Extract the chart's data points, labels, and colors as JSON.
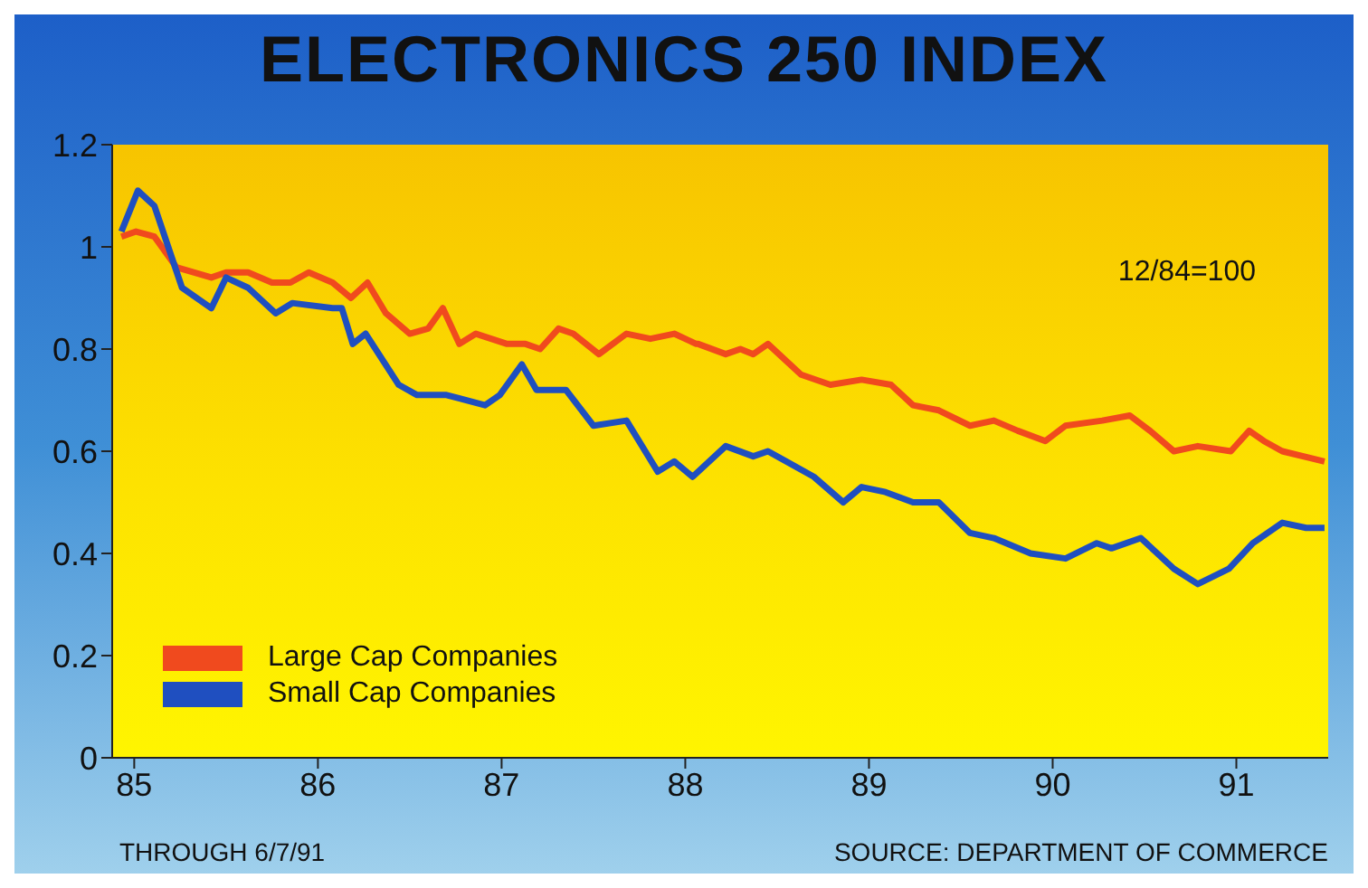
{
  "chart_data": {
    "type": "line",
    "title": "ELECTRONICS 250 INDEX",
    "annotations": [
      "12/84=100",
      "THROUGH 6/7/91",
      "SOURCE: DEPARTMENT OF COMMERCE"
    ],
    "xlim": [
      1984.88,
      1991.5
    ],
    "xticks": [
      {
        "value": 1985,
        "label": "85"
      },
      {
        "value": 1986,
        "label": "86"
      },
      {
        "value": 1987,
        "label": "87"
      },
      {
        "value": 1988,
        "label": "88"
      },
      {
        "value": 1989,
        "label": "89"
      },
      {
        "value": 1990,
        "label": "90"
      },
      {
        "value": 1991,
        "label": "91"
      }
    ],
    "ylim": [
      0,
      1.2
    ],
    "yticks": [
      0,
      0.2,
      0.4,
      0.6,
      0.8,
      1,
      1.2
    ],
    "legend": "bottom left",
    "marker": "none",
    "line_style": "solid",
    "series": [
      {
        "name": "Large Cap Companies",
        "color": "#f04a1e",
        "x": [
          1984.93,
          1985.01,
          1985.11,
          1985.23,
          1985.42,
          1985.5,
          1985.62,
          1985.75,
          1985.85,
          1985.95,
          1986.08,
          1986.18,
          1986.27,
          1986.37,
          1986.5,
          1986.6,
          1986.68,
          1986.77,
          1986.86,
          1987.03,
          1987.13,
          1987.21,
          1987.31,
          1987.39,
          1987.53,
          1987.68,
          1987.81,
          1987.94,
          1988.06,
          1988.07,
          1988.22,
          1988.3,
          1988.37,
          1988.45,
          1988.63,
          1988.79,
          1988.96,
          1989.12,
          1989.24,
          1989.38,
          1989.55,
          1989.68,
          1989.81,
          1989.96,
          1990.07,
          1990.27,
          1990.42,
          1990.53,
          1990.66,
          1990.79,
          1990.97,
          1991.07,
          1991.15,
          1991.25,
          1991.48
        ],
        "values": [
          1.02,
          1.03,
          1.02,
          0.96,
          0.94,
          0.95,
          0.95,
          0.93,
          0.93,
          0.95,
          0.93,
          0.9,
          0.93,
          0.87,
          0.83,
          0.84,
          0.88,
          0.81,
          0.83,
          0.81,
          0.81,
          0.8,
          0.84,
          0.83,
          0.79,
          0.83,
          0.82,
          0.83,
          0.81,
          0.81,
          0.79,
          0.8,
          0.79,
          0.81,
          0.75,
          0.73,
          0.74,
          0.73,
          0.69,
          0.68,
          0.65,
          0.66,
          0.64,
          0.62,
          0.65,
          0.66,
          0.67,
          0.64,
          0.6,
          0.61,
          0.6,
          0.64,
          0.62,
          0.6,
          0.58
        ]
      },
      {
        "name": "Small Cap Companies",
        "color": "#1f4fc0",
        "x": [
          1984.93,
          1985.02,
          1985.11,
          1985.26,
          1985.42,
          1985.5,
          1985.62,
          1985.77,
          1985.86,
          1986.08,
          1986.13,
          1986.19,
          1986.26,
          1986.44,
          1986.54,
          1986.7,
          1986.91,
          1986.99,
          1987.11,
          1987.19,
          1987.35,
          1987.5,
          1987.68,
          1987.85,
          1987.94,
          1988.04,
          1988.22,
          1988.37,
          1988.45,
          1988.7,
          1988.86,
          1988.96,
          1989.09,
          1989.24,
          1989.38,
          1989.55,
          1989.68,
          1989.88,
          1990.07,
          1990.24,
          1990.32,
          1990.48,
          1990.66,
          1990.79,
          1990.96,
          1991.09,
          1991.25,
          1991.38,
          1991.48
        ],
        "values": [
          1.03,
          1.11,
          1.08,
          0.92,
          0.88,
          0.94,
          0.92,
          0.87,
          0.89,
          0.88,
          0.88,
          0.81,
          0.83,
          0.73,
          0.71,
          0.71,
          0.69,
          0.71,
          0.77,
          0.72,
          0.72,
          0.65,
          0.66,
          0.56,
          0.58,
          0.55,
          0.61,
          0.59,
          0.6,
          0.55,
          0.5,
          0.53,
          0.52,
          0.5,
          0.5,
          0.44,
          0.43,
          0.4,
          0.39,
          0.42,
          0.41,
          0.43,
          0.37,
          0.34,
          0.37,
          0.42,
          0.46,
          0.45,
          0.45
        ]
      }
    ]
  }
}
